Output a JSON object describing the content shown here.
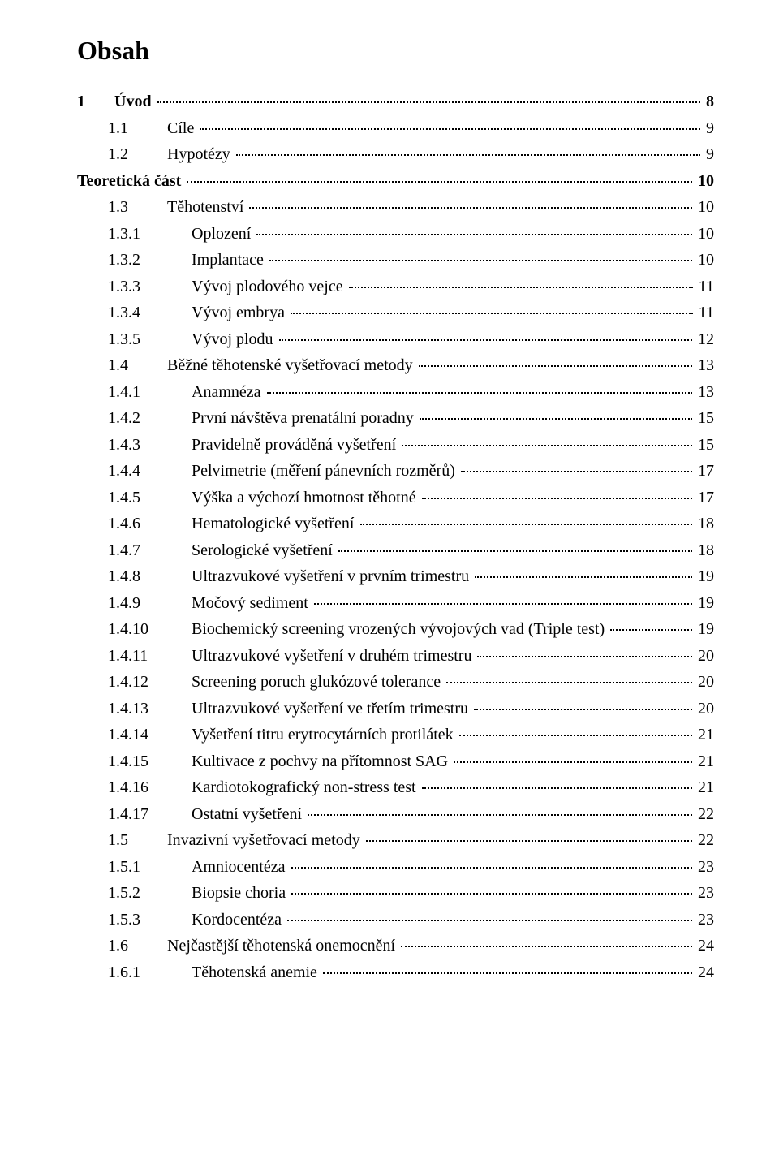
{
  "title": "Obsah",
  "entries": [
    {
      "num": "1",
      "label": "Úvod",
      "page": "8",
      "bold": true,
      "indent": 0,
      "numw": 1
    },
    {
      "num": "1.1",
      "label": "Cíle",
      "page": "9",
      "bold": false,
      "indent": 1,
      "numw": 2
    },
    {
      "num": "1.2",
      "label": "Hypotézy",
      "page": "9",
      "bold": false,
      "indent": 1,
      "numw": 2
    },
    {
      "num": "",
      "label": "Teoretická část",
      "page": "10",
      "bold": true,
      "indent": 0,
      "numw": 0
    },
    {
      "num": "1.3",
      "label": "Těhotenství",
      "page": "10",
      "bold": false,
      "indent": 1,
      "numw": 2
    },
    {
      "num": "1.3.1",
      "label": "Oplození",
      "page": "10",
      "bold": false,
      "indent": 2,
      "numw": 3
    },
    {
      "num": "1.3.2",
      "label": "Implantace",
      "page": "10",
      "bold": false,
      "indent": 2,
      "numw": 3
    },
    {
      "num": "1.3.3",
      "label": "Vývoj plodového vejce",
      "page": "11",
      "bold": false,
      "indent": 2,
      "numw": 3
    },
    {
      "num": "1.3.4",
      "label": "Vývoj embrya",
      "page": "11",
      "bold": false,
      "indent": 2,
      "numw": 3
    },
    {
      "num": "1.3.5",
      "label": "Vývoj plodu",
      "page": "12",
      "bold": false,
      "indent": 2,
      "numw": 3
    },
    {
      "num": "1.4",
      "label": "Běžné těhotenské vyšetřovací metody",
      "page": "13",
      "bold": false,
      "indent": 1,
      "numw": 2
    },
    {
      "num": "1.4.1",
      "label": "Anamnéza",
      "page": "13",
      "bold": false,
      "indent": 2,
      "numw": 3
    },
    {
      "num": "1.4.2",
      "label": "První návštěva prenatální poradny",
      "page": "15",
      "bold": false,
      "indent": 2,
      "numw": 3
    },
    {
      "num": "1.4.3",
      "label": "Pravidelně prováděná vyšetření",
      "page": "15",
      "bold": false,
      "indent": 2,
      "numw": 3
    },
    {
      "num": "1.4.4",
      "label": "Pelvimetrie (měření pánevních rozměrů)",
      "page": "17",
      "bold": false,
      "indent": 2,
      "numw": 3
    },
    {
      "num": "1.4.5",
      "label": "Výška a výchozí hmotnost těhotné",
      "page": "17",
      "bold": false,
      "indent": 2,
      "numw": 3
    },
    {
      "num": "1.4.6",
      "label": "Hematologické vyšetření",
      "page": "18",
      "bold": false,
      "indent": 2,
      "numw": 3
    },
    {
      "num": "1.4.7",
      "label": "Serologické vyšetření",
      "page": "18",
      "bold": false,
      "indent": 2,
      "numw": 3
    },
    {
      "num": "1.4.8",
      "label": "Ultrazvukové vyšetření v prvním trimestru",
      "page": "19",
      "bold": false,
      "indent": 2,
      "numw": 3
    },
    {
      "num": "1.4.9",
      "label": "Močový sediment",
      "page": "19",
      "bold": false,
      "indent": 2,
      "numw": 3
    },
    {
      "num": "1.4.10",
      "label": "Biochemický screening vrozených vývojových vad (Triple test)",
      "page": "19",
      "bold": false,
      "indent": 2,
      "numw": 3
    },
    {
      "num": "1.4.11",
      "label": "Ultrazvukové vyšetření v druhém trimestru",
      "page": "20",
      "bold": false,
      "indent": 2,
      "numw": 3
    },
    {
      "num": "1.4.12",
      "label": "Screening poruch glukózové tolerance",
      "page": "20",
      "bold": false,
      "indent": 2,
      "numw": 3
    },
    {
      "num": "1.4.13",
      "label": "Ultrazvukové vyšetření ve třetím trimestru",
      "page": "20",
      "bold": false,
      "indent": 2,
      "numw": 3
    },
    {
      "num": "1.4.14",
      "label": "Vyšetření titru erytrocytárních protilátek",
      "page": "21",
      "bold": false,
      "indent": 2,
      "numw": 3
    },
    {
      "num": "1.4.15",
      "label": "Kultivace z pochvy na přítomnost SAG",
      "page": "21",
      "bold": false,
      "indent": 2,
      "numw": 3
    },
    {
      "num": "1.4.16",
      "label": "Kardiotokografický non-stress test",
      "page": "21",
      "bold": false,
      "indent": 2,
      "numw": 3
    },
    {
      "num": "1.4.17",
      "label": "Ostatní vyšetření",
      "page": "22",
      "bold": false,
      "indent": 2,
      "numw": 3
    },
    {
      "num": "1.5",
      "label": "Invazivní vyšetřovací metody",
      "page": "22",
      "bold": false,
      "indent": 1,
      "numw": 2
    },
    {
      "num": "1.5.1",
      "label": "Amniocentéza",
      "page": "23",
      "bold": false,
      "indent": 2,
      "numw": 3
    },
    {
      "num": "1.5.2",
      "label": "Biopsie choria",
      "page": "23",
      "bold": false,
      "indent": 2,
      "numw": 3
    },
    {
      "num": "1.5.3",
      "label": "Kordocentéza",
      "page": "23",
      "bold": false,
      "indent": 2,
      "numw": 3
    },
    {
      "num": "1.6",
      "label": "Nejčastější těhotenská onemocnění",
      "page": "24",
      "bold": false,
      "indent": 1,
      "numw": 2
    },
    {
      "num": "1.6.1",
      "label": "Těhotenská anemie",
      "page": "24",
      "bold": false,
      "indent": 2,
      "numw": 3
    }
  ]
}
